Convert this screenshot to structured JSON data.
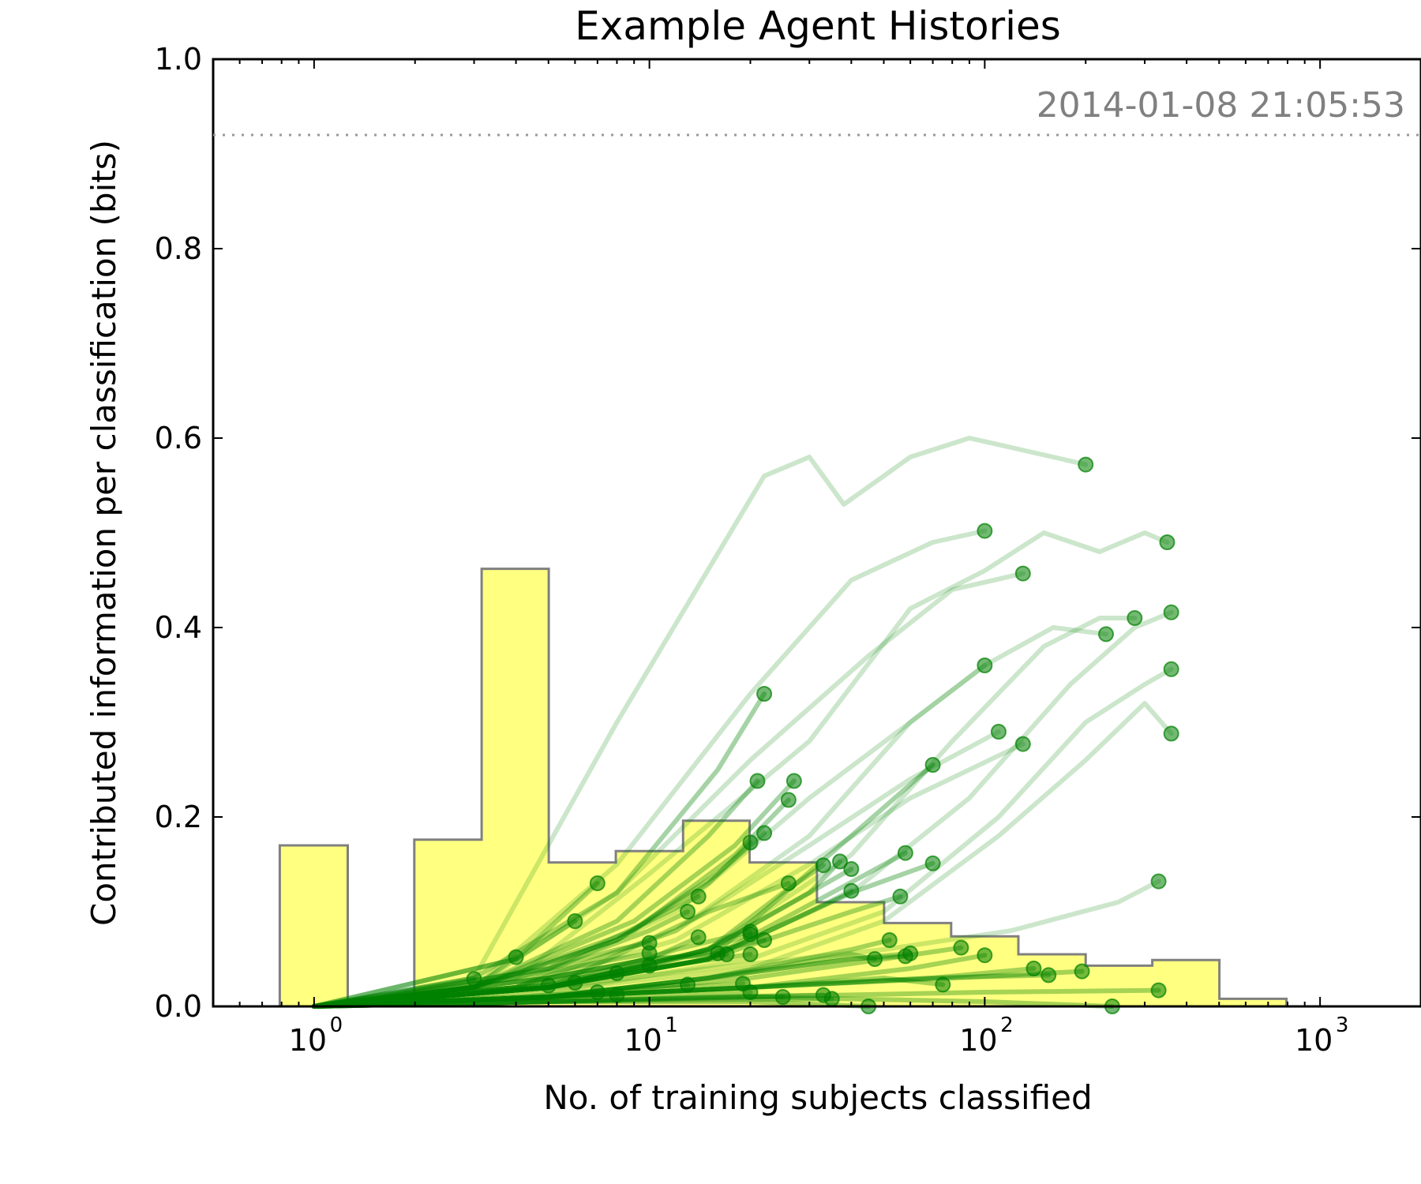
{
  "chart_data": {
    "type": "line",
    "title": "Example Agent Histories",
    "xlabel": "No. of training subjects classified",
    "ylabel": "Contributed information per classification (bits)",
    "timestamp": "2014-01-08 21:05:53",
    "x_scale": "log",
    "xlim": [
      0.5,
      2000
    ],
    "ylim": [
      0.0,
      1.0
    ],
    "grid": false,
    "reference_line_y": 0.92,
    "x_ticks": [
      {
        "base": "10",
        "exp": "0",
        "value": 1
      },
      {
        "base": "10",
        "exp": "1",
        "value": 10
      },
      {
        "base": "10",
        "exp": "2",
        "value": 100
      },
      {
        "base": "10",
        "exp": "3",
        "value": 1000
      }
    ],
    "y_ticks": [
      "0.0",
      "0.2",
      "0.4",
      "0.6",
      "0.8",
      "1.0"
    ],
    "histogram": {
      "fill": "#ffff80",
      "edge": "#808080",
      "bins": [
        {
          "x0": 0.79,
          "x1": 1.26,
          "value": 0.17
        },
        {
          "x0": 1.26,
          "x1": 1.99,
          "value": 0.0
        },
        {
          "x0": 1.99,
          "x1": 3.16,
          "value": 0.176
        },
        {
          "x0": 3.16,
          "x1": 5.01,
          "value": 0.462
        },
        {
          "x0": 5.01,
          "x1": 7.94,
          "value": 0.152
        },
        {
          "x0": 7.94,
          "x1": 12.6,
          "value": 0.164
        },
        {
          "x0": 12.6,
          "x1": 19.9,
          "value": 0.196
        },
        {
          "x0": 19.9,
          "x1": 31.6,
          "value": 0.152
        },
        {
          "x0": 31.6,
          "x1": 50.1,
          "value": 0.11
        },
        {
          "x0": 50.1,
          "x1": 79.4,
          "value": 0.088
        },
        {
          "x0": 79.4,
          "x1": 126,
          "value": 0.074
        },
        {
          "x0": 126,
          "x1": 200,
          "value": 0.055
        },
        {
          "x0": 200,
          "x1": 316,
          "value": 0.043
        },
        {
          "x0": 316,
          "x1": 501,
          "value": 0.049
        },
        {
          "x0": 501,
          "x1": 794,
          "value": 0.008
        }
      ]
    },
    "agent_color": "#008000",
    "agents": [
      {
        "x": [
          1,
          3,
          8,
          22,
          30,
          38,
          60,
          90,
          120,
          160,
          200
        ],
        "y": [
          0.0,
          0.03,
          0.3,
          0.56,
          0.58,
          0.53,
          0.58,
          0.6,
          0.59,
          0.58,
          0.572
        ]
      },
      {
        "x": [
          1,
          3,
          8,
          20,
          40,
          70,
          100
        ],
        "y": [
          0.0,
          0.02,
          0.15,
          0.33,
          0.45,
          0.49,
          0.502
        ]
      },
      {
        "x": [
          1,
          3,
          8,
          20,
          45,
          80,
          130
        ],
        "y": [
          0.0,
          0.02,
          0.12,
          0.26,
          0.37,
          0.44,
          0.457
        ]
      },
      {
        "x": [
          1,
          4,
          10,
          30,
          60,
          100,
          150,
          220,
          300,
          350
        ],
        "y": [
          0.0,
          0.03,
          0.14,
          0.28,
          0.42,
          0.46,
          0.5,
          0.48,
          0.5,
          0.49
        ]
      },
      {
        "x": [
          1,
          4,
          12,
          30,
          60,
          100,
          160,
          230
        ],
        "y": [
          0.0,
          0.02,
          0.08,
          0.18,
          0.3,
          0.36,
          0.4,
          0.393
        ]
      },
      {
        "x": [
          1,
          5,
          15,
          40,
          80,
          150,
          220,
          280
        ],
        "y": [
          0.0,
          0.02,
          0.06,
          0.16,
          0.28,
          0.38,
          0.41,
          0.41
        ]
      },
      {
        "x": [
          1,
          5,
          15,
          40,
          90,
          180,
          280,
          360
        ],
        "y": [
          0.0,
          0.02,
          0.05,
          0.12,
          0.22,
          0.34,
          0.4,
          0.416
        ]
      },
      {
        "x": [
          1,
          6,
          20,
          50,
          110,
          200,
          300,
          360
        ],
        "y": [
          0.0,
          0.02,
          0.05,
          0.1,
          0.2,
          0.3,
          0.34,
          0.356
        ]
      },
      {
        "x": [
          1,
          6,
          20,
          50,
          110,
          200,
          300,
          360
        ],
        "y": [
          0.0,
          0.02,
          0.04,
          0.09,
          0.18,
          0.26,
          0.32,
          0.288
        ]
      },
      {
        "x": [
          1,
          4,
          12,
          30,
          60,
          100
        ],
        "y": [
          0.0,
          0.02,
          0.1,
          0.22,
          0.3,
          0.36
        ]
      },
      {
        "x": [
          1,
          4,
          12,
          30,
          60,
          110
        ],
        "y": [
          0.0,
          0.02,
          0.08,
          0.17,
          0.24,
          0.29
        ]
      },
      {
        "x": [
          1,
          4,
          12,
          30,
          60,
          130
        ],
        "y": [
          0.0,
          0.02,
          0.07,
          0.15,
          0.22,
          0.277
        ]
      },
      {
        "x": [
          1,
          3,
          8,
          16,
          22
        ],
        "y": [
          0.0,
          0.03,
          0.12,
          0.25,
          0.33
        ]
      },
      {
        "x": [
          1,
          3,
          8,
          15,
          21
        ],
        "y": [
          0.0,
          0.02,
          0.09,
          0.18,
          0.238
        ]
      },
      {
        "x": [
          1,
          3,
          9,
          18,
          27
        ],
        "y": [
          0.0,
          0.02,
          0.09,
          0.17,
          0.238
        ]
      },
      {
        "x": [
          1,
          3,
          9,
          18,
          26
        ],
        "y": [
          0.0,
          0.02,
          0.08,
          0.16,
          0.218
        ]
      },
      {
        "x": [
          1,
          3,
          8,
          16,
          22
        ],
        "y": [
          0.0,
          0.02,
          0.07,
          0.14,
          0.183
        ]
      },
      {
        "x": [
          1,
          3,
          8,
          15,
          20
        ],
        "y": [
          0.0,
          0.02,
          0.07,
          0.13,
          0.173
        ]
      },
      {
        "x": [
          1,
          5,
          15,
          40,
          70
        ],
        "y": [
          0.0,
          0.02,
          0.05,
          0.18,
          0.255
        ]
      },
      {
        "x": [
          1,
          5,
          15,
          40,
          70
        ],
        "y": [
          0.0,
          0.02,
          0.05,
          0.12,
          0.151
        ]
      },
      {
        "x": [
          1,
          5,
          15,
          35,
          58
        ],
        "y": [
          0.0,
          0.02,
          0.05,
          0.12,
          0.162
        ]
      },
      {
        "x": [
          1,
          5,
          15,
          30,
          37
        ],
        "y": [
          0.0,
          0.02,
          0.06,
          0.12,
          0.153
        ]
      },
      {
        "x": [
          1,
          5,
          15,
          30,
          40
        ],
        "y": [
          0.0,
          0.02,
          0.06,
          0.12,
          0.145
        ]
      },
      {
        "x": [
          1,
          5,
          15,
          25,
          33
        ],
        "y": [
          0.0,
          0.02,
          0.06,
          0.12,
          0.149
        ]
      },
      {
        "x": [
          1,
          5,
          15,
          30,
          40
        ],
        "y": [
          0.0,
          0.02,
          0.05,
          0.1,
          0.122
        ]
      },
      {
        "x": [
          1,
          5,
          15,
          40,
          56
        ],
        "y": [
          0.0,
          0.02,
          0.05,
          0.1,
          0.116
        ]
      },
      {
        "x": [
          1,
          5,
          15,
          50,
          120,
          250,
          330
        ],
        "y": [
          0.0,
          0.02,
          0.04,
          0.06,
          0.08,
          0.11,
          0.132
        ]
      },
      {
        "x": [
          1,
          4,
          7
        ],
        "y": [
          0.0,
          0.05,
          0.13
        ]
      },
      {
        "x": [
          1,
          3,
          4
        ],
        "y": [
          0.0,
          0.02,
          0.052
        ]
      },
      {
        "x": [
          1,
          3
        ],
        "y": [
          0.0,
          0.029
        ]
      },
      {
        "x": [
          1,
          2
        ],
        "y": [
          0.0,
          0.007
        ]
      },
      {
        "x": [
          1,
          5,
          10,
          14
        ],
        "y": [
          0.0,
          0.04,
          0.09,
          0.116
        ]
      },
      {
        "x": [
          1,
          5,
          10,
          13
        ],
        "y": [
          0.0,
          0.04,
          0.08,
          0.1
        ]
      },
      {
        "x": [
          1,
          4,
          6
        ],
        "y": [
          0.0,
          0.05,
          0.09
        ]
      },
      {
        "x": [
          1,
          4,
          8,
          10
        ],
        "y": [
          0.0,
          0.03,
          0.06,
          0.067
        ]
      },
      {
        "x": [
          1,
          4,
          8,
          10
        ],
        "y": [
          0.0,
          0.03,
          0.05,
          0.056
        ]
      },
      {
        "x": [
          1,
          5,
          10,
          14
        ],
        "y": [
          0.0,
          0.03,
          0.05,
          0.073
        ]
      },
      {
        "x": [
          1,
          5,
          12,
          20
        ],
        "y": [
          0.0,
          0.02,
          0.06,
          0.079
        ]
      },
      {
        "x": [
          1,
          5,
          12,
          20
        ],
        "y": [
          0.0,
          0.02,
          0.05,
          0.076
        ]
      },
      {
        "x": [
          1,
          5,
          12,
          22
        ],
        "y": [
          0.0,
          0.02,
          0.05,
          0.07
        ]
      },
      {
        "x": [
          1,
          5,
          10,
          20
        ],
        "y": [
          0.0,
          0.02,
          0.04,
          0.055
        ]
      },
      {
        "x": [
          1,
          5,
          10,
          17
        ],
        "y": [
          0.0,
          0.03,
          0.05,
          0.055
        ]
      },
      {
        "x": [
          1,
          5,
          10,
          16
        ],
        "y": [
          0.0,
          0.03,
          0.05,
          0.056
        ]
      },
      {
        "x": [
          1,
          4,
          8,
          10
        ],
        "y": [
          0.0,
          0.02,
          0.04,
          0.043
        ]
      },
      {
        "x": [
          1,
          4,
          6,
          8
        ],
        "y": [
          0.0,
          0.02,
          0.03,
          0.035
        ]
      },
      {
        "x": [
          1,
          4,
          6
        ],
        "y": [
          0.0,
          0.02,
          0.025
        ]
      },
      {
        "x": [
          1,
          3,
          5
        ],
        "y": [
          0.0,
          0.015,
          0.022
        ]
      },
      {
        "x": [
          1,
          4,
          7
        ],
        "y": [
          0.0,
          0.01,
          0.015
        ]
      },
      {
        "x": [
          1,
          4,
          8
        ],
        "y": [
          0.0,
          0.008,
          0.012
        ]
      },
      {
        "x": [
          1,
          4,
          9,
          13
        ],
        "y": [
          0.0,
          0.01,
          0.02,
          0.023
        ]
      },
      {
        "x": [
          1,
          5,
          12,
          19
        ],
        "y": [
          0.0,
          0.01,
          0.02,
          0.024
        ]
      },
      {
        "x": [
          1,
          5,
          12,
          20
        ],
        "y": [
          0.0,
          0.01,
          0.015,
          0.015
        ]
      },
      {
        "x": [
          1,
          5,
          12,
          25
        ],
        "y": [
          0.0,
          0.005,
          0.01,
          0.01
        ]
      },
      {
        "x": [
          1,
          5,
          15,
          33
        ],
        "y": [
          0.0,
          0.005,
          0.01,
          0.012
        ]
      },
      {
        "x": [
          1,
          5,
          15,
          35
        ],
        "y": [
          0.0,
          0.005,
          0.007,
          0.008
        ]
      },
      {
        "x": [
          1,
          5,
          15,
          26
        ],
        "y": [
          0.0,
          0.02,
          0.1,
          0.13
        ]
      },
      {
        "x": [
          1,
          5,
          15,
          40,
          47
        ],
        "y": [
          0.0,
          0.01,
          0.03,
          0.055,
          0.05
        ]
      },
      {
        "x": [
          1,
          5,
          15,
          40,
          52
        ],
        "y": [
          0.0,
          0.01,
          0.03,
          0.06,
          0.07
        ]
      },
      {
        "x": [
          1,
          5,
          15,
          40,
          58
        ],
        "y": [
          0.0,
          0.01,
          0.03,
          0.05,
          0.053
        ]
      },
      {
        "x": [
          1,
          5,
          15,
          40,
          60
        ],
        "y": [
          0.0,
          0.01,
          0.03,
          0.05,
          0.056
        ]
      },
      {
        "x": [
          1,
          5,
          20,
          50,
          75
        ],
        "y": [
          0.0,
          0.01,
          0.02,
          0.03,
          0.023
        ]
      },
      {
        "x": [
          1,
          5,
          20,
          50,
          85
        ],
        "y": [
          0.0,
          0.01,
          0.03,
          0.05,
          0.062
        ]
      },
      {
        "x": [
          1,
          5,
          20,
          60,
          100
        ],
        "y": [
          0.0,
          0.01,
          0.02,
          0.04,
          0.054
        ]
      },
      {
        "x": [
          1,
          5,
          20,
          70,
          140
        ],
        "y": [
          0.0,
          0.01,
          0.02,
          0.03,
          0.04
        ]
      },
      {
        "x": [
          1,
          5,
          20,
          70,
          155
        ],
        "y": [
          0.0,
          0.01,
          0.02,
          0.03,
          0.033
        ]
      },
      {
        "x": [
          1,
          5,
          20,
          80,
          195
        ],
        "y": [
          0.0,
          0.01,
          0.02,
          0.03,
          0.037
        ]
      },
      {
        "x": [
          1,
          5,
          20,
          100,
          240
        ],
        "y": [
          0.0,
          0.005,
          0.01,
          0.005,
          0.0
        ]
      },
      {
        "x": [
          1,
          5,
          20,
          100,
          330
        ],
        "y": [
          0.0,
          0.005,
          0.01,
          0.015,
          0.017
        ]
      },
      {
        "x": [
          1,
          5,
          20,
          45
        ],
        "y": [
          0.0,
          0.005,
          0.005,
          0.0
        ]
      }
    ]
  }
}
